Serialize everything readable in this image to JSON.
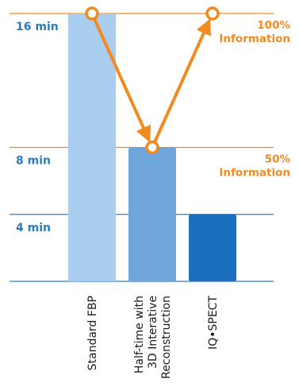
{
  "chart_data": {
    "type": "bar",
    "categories": [
      [
        "Standard FBP"
      ],
      [
        "Half-time with",
        "3D Interative",
        "Reconstruction"
      ],
      [
        "IQ•SPECT"
      ]
    ],
    "values": [
      16,
      8,
      4
    ],
    "unit": "min",
    "ytick_values": [
      16,
      8,
      4
    ],
    "ytick_labels": [
      "16 min",
      "8 min",
      "4 min"
    ],
    "ylim": [
      0,
      16
    ],
    "bar_colors": [
      "#a9cdee",
      "#6ea6d9",
      "#1a6fc1"
    ],
    "axis_label_color": "#2a7bc2",
    "line_color": "#3579c2",
    "accent_color": "#f28a20",
    "annotations": [
      {
        "lines": [
          "100%",
          "Information"
        ],
        "level": 16
      },
      {
        "lines": [
          "50%",
          "Information"
        ],
        "level": 8
      }
    ]
  }
}
